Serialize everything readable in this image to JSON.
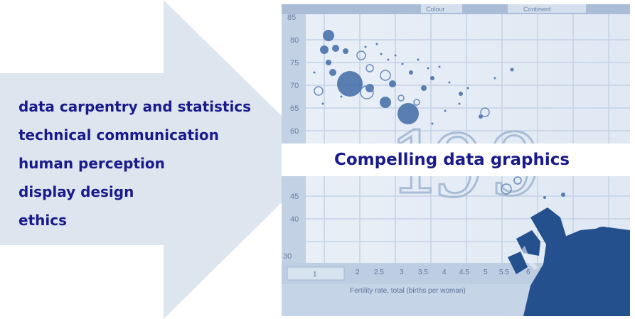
{
  "skills": [
    "data carpentry and statistics",
    "technical communication",
    "human perception",
    "display design",
    "ethics"
  ],
  "caption": "Compelling data graphics",
  "photo": {
    "tabs": [
      "Colour",
      "Continent"
    ],
    "y_ticks": [
      "85",
      "80",
      "75",
      "70",
      "65",
      "60",
      "45",
      "40",
      "30"
    ],
    "x_ticks": [
      "1",
      "2",
      "2.5",
      "3",
      "3.5",
      "4",
      "4.5",
      "5",
      "5.5",
      "6"
    ],
    "x_axis_label": "Fertility rate, total (births per woman)"
  },
  "colors": {
    "arrow": "#dde5ef",
    "text": "#1a1a8c",
    "photo_tint": "#2f5a96"
  }
}
